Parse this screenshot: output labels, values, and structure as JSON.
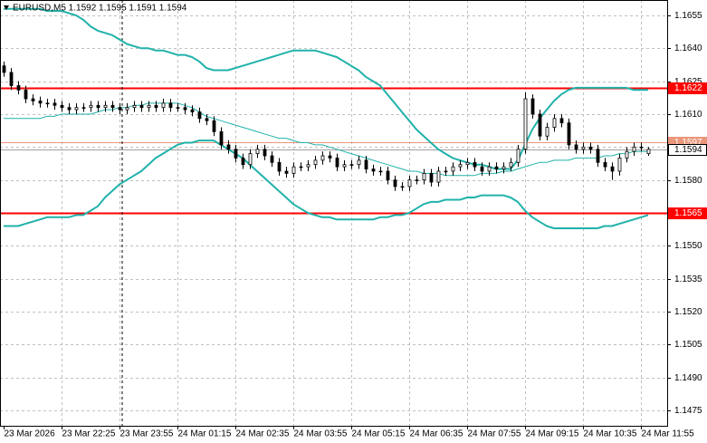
{
  "chart_data": {
    "type": "candlestick",
    "title": "EURUSD,M5  1.1592 1.1595 1.1591 1.1594",
    "categories": [
      "23 Mar 2026",
      null,
      null,
      null,
      null,
      null,
      null,
      null,
      "23 Mar 22:25",
      null,
      null,
      null,
      null,
      null,
      null,
      null,
      "23 Mar 23:55",
      null,
      null,
      null,
      null,
      null,
      null,
      null,
      "24 Mar 01:15",
      null,
      null,
      null,
      null,
      null,
      null,
      null,
      "24 Mar 02:35",
      null,
      null,
      null,
      null,
      null,
      null,
      null,
      "24 Mar 03:55",
      null,
      null,
      null,
      null,
      null,
      null,
      null,
      "24 Mar 05:15",
      null,
      null,
      null,
      null,
      null,
      null,
      null,
      "24 Mar 06:35",
      null,
      null,
      null,
      null,
      null,
      null,
      null,
      "24 Mar 07:55",
      null,
      null,
      null,
      null,
      null,
      null,
      null,
      "24 Mar 09:15",
      null,
      null,
      null,
      null,
      null,
      null,
      null,
      "24 Mar 10:35",
      null,
      null,
      null,
      null,
      null,
      null,
      null,
      "24 Mar 11:55",
      null
    ],
    "open": [
      1.1632,
      1.1629,
      1.1623,
      1.1621,
      1.1617,
      1.1616,
      1.1615,
      1.1615,
      1.1614,
      1.1613,
      1.1612,
      1.1613,
      1.1613,
      1.1614,
      1.1613,
      1.1614,
      1.1613,
      1.1612,
      1.1613,
      1.1614,
      1.1613,
      1.1614,
      1.1613,
      1.1615,
      1.1613,
      1.1613,
      1.1612,
      1.1611,
      1.1608,
      1.1607,
      1.1602,
      1.1596,
      1.1594,
      1.159,
      1.1587,
      1.1592,
      1.1594,
      1.1591,
      1.1588,
      1.1584,
      1.1583,
      1.1586,
      1.1586,
      1.1587,
      1.1589,
      1.1591,
      1.159,
      1.1586,
      1.1587,
      1.1587,
      1.1589,
      1.1585,
      1.1584,
      1.1584,
      1.158,
      1.1577,
      1.1577,
      1.158,
      1.158,
      1.1583,
      1.1579,
      1.1584,
      1.1584,
      1.1586,
      1.1587,
      1.1588,
      1.1586,
      1.1584,
      1.1586,
      1.1585,
      1.1586,
      1.1588,
      1.1594,
      1.1617,
      1.161,
      1.16,
      1.1604,
      1.1608,
      1.1606,
      1.1596,
      1.1594,
      1.1595,
      1.1594,
      1.1588,
      1.1586,
      1.1584,
      1.159,
      1.1593,
      1.1595,
      1.1592
    ],
    "high": [
      1.1634,
      1.1631,
      1.1625,
      1.1623,
      1.1619,
      1.1618,
      1.1617,
      1.1617,
      1.1616,
      1.1615,
      1.1615,
      1.1615,
      1.1616,
      1.1616,
      1.1616,
      1.1616,
      1.1615,
      1.1615,
      1.1616,
      1.1616,
      1.1616,
      1.1616,
      1.1617,
      1.1617,
      1.1615,
      1.1615,
      1.1614,
      1.1613,
      1.161,
      1.1609,
      1.1604,
      1.1598,
      1.1596,
      1.1592,
      1.1594,
      1.1596,
      1.1596,
      1.1593,
      1.159,
      1.1586,
      1.1588,
      1.1588,
      1.1589,
      1.1591,
      1.1593,
      1.1593,
      1.1592,
      1.1589,
      1.1589,
      1.1591,
      1.1591,
      1.1587,
      1.1586,
      1.1586,
      1.1582,
      1.1579,
      1.1582,
      1.1582,
      1.1585,
      1.1585,
      1.1586,
      1.1586,
      1.1588,
      1.1589,
      1.159,
      1.159,
      1.1588,
      1.1588,
      1.1588,
      1.1588,
      1.159,
      1.1596,
      1.162,
      1.1619,
      1.1612,
      1.1606,
      1.161,
      1.161,
      1.1608,
      1.1598,
      1.1597,
      1.1597,
      1.1596,
      1.159,
      1.1588,
      1.1592,
      1.1595,
      1.1597,
      1.1597,
      1.1595
    ],
    "low": [
      1.1627,
      1.1621,
      1.1619,
      1.1615,
      1.1614,
      1.1613,
      1.1613,
      1.1612,
      1.1611,
      1.161,
      1.161,
      1.1611,
      1.1611,
      1.1611,
      1.1611,
      1.1611,
      1.161,
      1.161,
      1.1611,
      1.1611,
      1.1611,
      1.1611,
      1.1611,
      1.1611,
      1.1611,
      1.161,
      1.1609,
      1.1606,
      1.1605,
      1.16,
      1.1594,
      1.1592,
      1.1588,
      1.1585,
      1.1585,
      1.159,
      1.1589,
      1.1586,
      1.1582,
      1.1581,
      1.1581,
      1.1584,
      1.1584,
      1.1585,
      1.1587,
      1.1588,
      1.1584,
      1.1584,
      1.1585,
      1.1585,
      1.1583,
      1.1582,
      1.1582,
      1.1578,
      1.1575,
      1.1575,
      1.1575,
      1.1578,
      1.1578,
      1.1577,
      1.1577,
      1.1582,
      1.1582,
      1.1584,
      1.1585,
      1.1584,
      1.1582,
      1.1582,
      1.1583,
      1.1583,
      1.1584,
      1.1586,
      1.1592,
      1.1608,
      1.1598,
      1.1598,
      1.1602,
      1.1604,
      1.1594,
      1.1592,
      1.1592,
      1.1592,
      1.1586,
      1.1584,
      1.158,
      1.1582,
      1.1588,
      1.1591,
      1.1593,
      1.1591
    ],
    "close": [
      1.1629,
      1.1623,
      1.1621,
      1.1617,
      1.1616,
      1.1615,
      1.1615,
      1.1614,
      1.1613,
      1.1612,
      1.1613,
      1.1613,
      1.1614,
      1.1613,
      1.1614,
      1.1613,
      1.1612,
      1.1613,
      1.1614,
      1.1613,
      1.1614,
      1.1613,
      1.1615,
      1.1613,
      1.1613,
      1.1612,
      1.1611,
      1.1608,
      1.1607,
      1.1602,
      1.1596,
      1.1594,
      1.159,
      1.1587,
      1.1592,
      1.1594,
      1.1591,
      1.1588,
      1.1584,
      1.1583,
      1.1586,
      1.1586,
      1.1587,
      1.1589,
      1.1591,
      1.159,
      1.1586,
      1.1587,
      1.1587,
      1.1589,
      1.1585,
      1.1584,
      1.1584,
      1.158,
      1.1577,
      1.1577,
      1.158,
      1.158,
      1.1583,
      1.1579,
      1.1584,
      1.1584,
      1.1586,
      1.1587,
      1.1588,
      1.1586,
      1.1584,
      1.1586,
      1.1585,
      1.1586,
      1.1588,
      1.1594,
      1.1617,
      1.161,
      1.16,
      1.1604,
      1.1608,
      1.1606,
      1.1596,
      1.1594,
      1.1595,
      1.1594,
      1.1588,
      1.1586,
      1.1584,
      1.159,
      1.1593,
      1.1595,
      1.1595,
      1.1594
    ],
    "up_color": "#ffffff",
    "down_color": "#000000",
    "bands": [
      {
        "color": "#20b2aa",
        "values": [
          1.1658,
          1.1658,
          1.1658,
          1.1658,
          1.1658,
          1.1658,
          1.1657,
          1.1657,
          1.1657,
          1.1656,
          1.1655,
          1.1653,
          1.165,
          1.1648,
          1.1647,
          1.1646,
          1.1644,
          1.1642,
          1.1641,
          1.164,
          1.164,
          1.1639,
          1.1639,
          1.1638,
          1.1637,
          1.1637,
          1.1636,
          1.1634,
          1.1631,
          1.163,
          1.163,
          1.163,
          1.1631,
          1.1632,
          1.1633,
          1.1634,
          1.1635,
          1.1636,
          1.1637,
          1.1638,
          1.1639,
          1.1639,
          1.1639,
          1.1639,
          1.1638,
          1.1637,
          1.1636,
          1.1634,
          1.1632,
          1.163,
          1.1627,
          1.1625,
          1.1623,
          1.1619,
          1.1615,
          1.1611,
          1.1607,
          1.1603,
          1.16,
          1.1597,
          1.1594,
          1.1592,
          1.159,
          1.1589,
          1.1588,
          1.1587,
          1.1587,
          1.1586,
          1.1585,
          1.1585,
          1.1585,
          1.1589,
          1.1596,
          1.1603,
          1.1608,
          1.1612,
          1.1616,
          1.1619,
          1.1621,
          1.1622,
          1.1622,
          1.1622,
          1.1622,
          1.1622,
          1.1622,
          1.1622,
          1.1622,
          1.1621,
          1.1621,
          1.1621
        ]
      },
      {
        "color": "#20b2aa",
        "values": [
          1.1608,
          1.1608,
          1.1608,
          1.1608,
          1.1608,
          1.1608,
          1.1609,
          1.1609,
          1.161,
          1.161,
          1.161,
          1.161,
          1.161,
          1.1611,
          1.1612,
          1.1612,
          1.1613,
          1.1613,
          1.1614,
          1.1614,
          1.1615,
          1.1615,
          1.1615,
          1.1615,
          1.1615,
          1.1614,
          1.1613,
          1.1611,
          1.1609,
          1.1608,
          1.1607,
          1.1606,
          1.1605,
          1.1604,
          1.1603,
          1.1602,
          1.1601,
          1.16,
          1.1599,
          1.1599,
          1.1598,
          1.1597,
          1.1597,
          1.1596,
          1.1596,
          1.1595,
          1.1594,
          1.1593,
          1.1592,
          1.1591,
          1.159,
          1.1589,
          1.1588,
          1.1587,
          1.1586,
          1.1585,
          1.1584,
          1.1584,
          1.1583,
          1.1583,
          1.1583,
          1.1582,
          1.1582,
          1.1582,
          1.1582,
          1.1582,
          1.1583,
          1.1583,
          1.1583,
          1.1584,
          1.1584,
          1.1585,
          1.1586,
          1.1587,
          1.1588,
          1.1588,
          1.1589,
          1.1589,
          1.1589,
          1.159,
          1.159,
          1.159,
          1.159,
          1.1591,
          1.1591,
          1.1592,
          1.1592,
          1.1593,
          1.1593,
          1.1593
        ]
      },
      {
        "color": "#20b2aa",
        "values": [
          1.1559,
          1.1559,
          1.1559,
          1.156,
          1.1561,
          1.1562,
          1.1563,
          1.1563,
          1.1563,
          1.1563,
          1.1564,
          1.1564,
          1.1566,
          1.1568,
          1.1572,
          1.1575,
          1.1578,
          1.158,
          1.1582,
          1.1584,
          1.1587,
          1.159,
          1.1592,
          1.1594,
          1.1596,
          1.1597,
          1.1597,
          1.1598,
          1.1598,
          1.1598,
          1.1596,
          1.1594,
          1.1592,
          1.159,
          1.1587,
          1.1584,
          1.1581,
          1.1578,
          1.1575,
          1.1572,
          1.1569,
          1.1567,
          1.1565,
          1.1564,
          1.1563,
          1.1563,
          1.1562,
          1.1562,
          1.1562,
          1.1562,
          1.1562,
          1.1562,
          1.1563,
          1.1563,
          1.1564,
          1.1564,
          1.1565,
          1.1567,
          1.1569,
          1.157,
          1.157,
          1.1571,
          1.1571,
          1.1571,
          1.1572,
          1.1572,
          1.1573,
          1.1573,
          1.1573,
          1.1573,
          1.1572,
          1.157,
          1.1566,
          1.1563,
          1.1561,
          1.1559,
          1.1558,
          1.1558,
          1.1558,
          1.1558,
          1.1558,
          1.1558,
          1.1558,
          1.1559,
          1.1559,
          1.156,
          1.1561,
          1.1562,
          1.1563,
          1.1564
        ]
      }
    ],
    "levels": [
      {
        "value": 1.1622,
        "color": "#ff0000"
      },
      {
        "value": 1.1597,
        "color": "#e9967a"
      },
      {
        "value": 1.1565,
        "color": "#ff0000"
      }
    ],
    "last_price": 1.1594,
    "ylim": [
      1.1468,
      1.1662
    ],
    "yticks": [
      1.1655,
      {
        "value": 1.164,
        "label": "1.1640"
      },
      1.1625,
      {
        "value": 1.161,
        "label": "1.1610"
      },
      1.1595,
      {
        "value": 1.158,
        "label": "1.1580"
      },
      1.1565,
      {
        "value": 1.155,
        "label": "1.1550"
      },
      1.1535,
      {
        "value": 1.152,
        "label": "1.1520"
      },
      1.1505,
      {
        "value": 1.149,
        "label": "1.1490"
      },
      1.1475
    ],
    "grid": true
  }
}
